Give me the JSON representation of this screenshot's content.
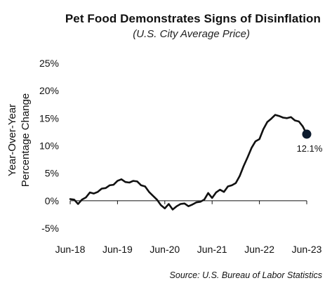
{
  "chart_data": {
    "type": "line",
    "title": "Pet Food Demonstrates Signs of Disinflation",
    "subtitle": "(U.S. City Average Price)",
    "ylabel_lines": [
      "Year-Over-Year",
      "Percentage Change"
    ],
    "xlabel": "",
    "ylim": [
      -5,
      25
    ],
    "y_ticks": [
      -5,
      0,
      5,
      10,
      15,
      20,
      25
    ],
    "y_tick_labels": [
      "-5%",
      "0%",
      "5%",
      "10%",
      "15%",
      "20%",
      "25%"
    ],
    "x_ticks": [
      0,
      12,
      24,
      36,
      48,
      60
    ],
    "x_tick_labels": [
      "Jun-18",
      "Jun-19",
      "Jun-20",
      "Jun-21",
      "Jun-22",
      "Jun-23"
    ],
    "grid": false,
    "source": "Source: U.S. Bureau of Labor Statistics",
    "series": [
      {
        "name": "",
        "color": "#111111",
        "x": [
          0,
          1,
          2,
          3,
          4,
          5,
          6,
          7,
          8,
          9,
          10,
          11,
          12,
          13,
          14,
          15,
          16,
          17,
          18,
          19,
          20,
          21,
          22,
          23,
          24,
          25,
          26,
          27,
          28,
          29,
          30,
          31,
          32,
          33,
          34,
          35,
          36,
          37,
          38,
          39,
          40,
          41,
          42,
          43,
          44,
          45,
          46,
          47,
          48,
          49,
          50,
          51,
          52,
          53,
          54,
          55,
          56,
          57,
          58,
          59,
          60
        ],
        "values": [
          0.3,
          0.2,
          -0.6,
          0.2,
          0.6,
          1.5,
          1.3,
          1.6,
          2.2,
          2.3,
          2.8,
          2.9,
          3.6,
          3.9,
          3.4,
          3.3,
          3.6,
          3.5,
          2.8,
          2.6,
          1.6,
          0.9,
          0.2,
          -0.8,
          -1.4,
          -0.6,
          -1.6,
          -1.0,
          -0.6,
          -0.5,
          -1.0,
          -0.7,
          -0.3,
          -0.2,
          0.2,
          1.4,
          0.5,
          1.5,
          2.0,
          1.6,
          2.6,
          2.8,
          3.2,
          4.5,
          6.3,
          7.9,
          9.6,
          10.8,
          11.2,
          13.0,
          14.3,
          14.9,
          15.6,
          15.4,
          15.1,
          15.0,
          15.2,
          14.6,
          14.4,
          13.5,
          12.1
        ]
      }
    ],
    "annotation": {
      "x": 60,
      "y": 12.1,
      "label": "12.1%",
      "marker_color": "#0d1b2e"
    }
  }
}
